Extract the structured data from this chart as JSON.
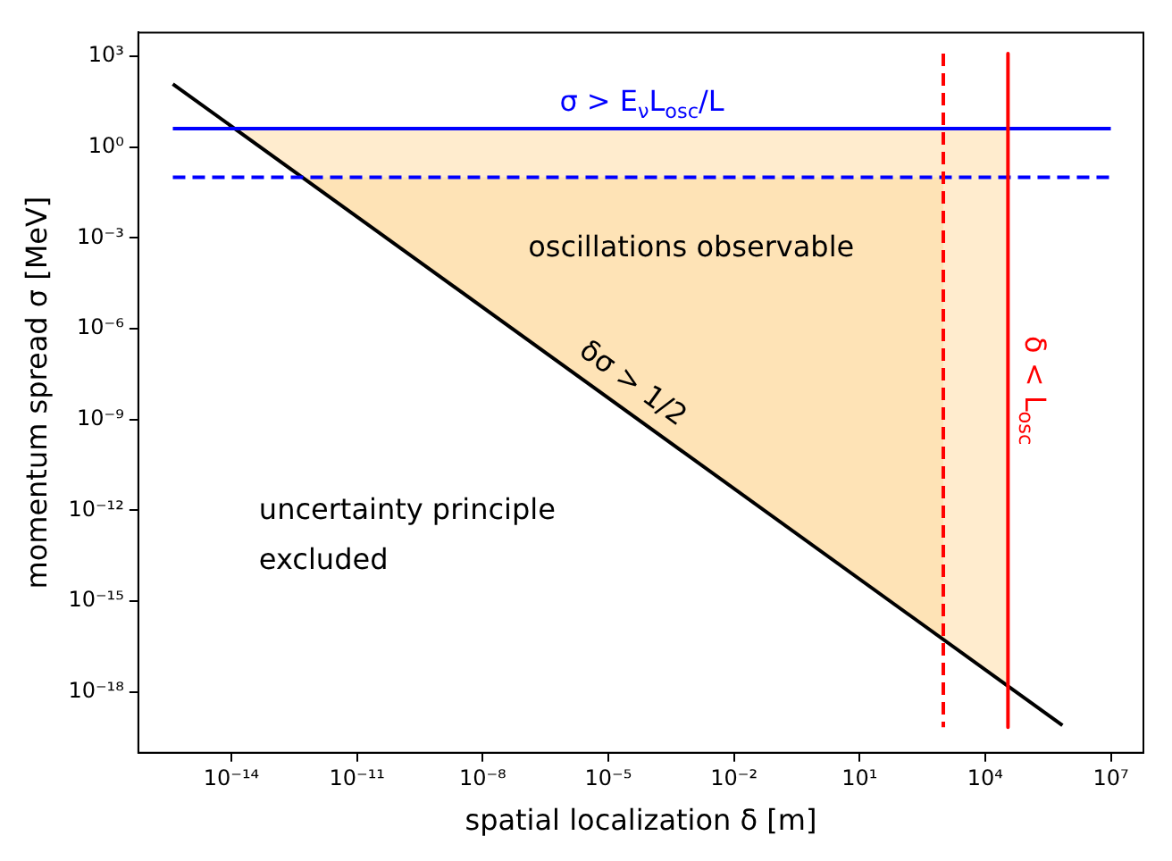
{
  "chart_data": {
    "type": "line",
    "xlabel": "spatial localization δ [m]",
    "ylabel": "momentum spread σ [MeV]",
    "log": "xy",
    "grid": false,
    "legend": false,
    "xlim": [
      6e-17,
      60000000.0
    ],
    "ylim": [
      1e-20,
      6000.0
    ],
    "xticks": [
      {
        "value": 1e-14,
        "label": "10⁻¹⁴"
      },
      {
        "value": 1e-11,
        "label": "10⁻¹¹"
      },
      {
        "value": 1e-08,
        "label": "10⁻⁸"
      },
      {
        "value": 1e-05,
        "label": "10⁻⁵"
      },
      {
        "value": 0.01,
        "label": "10⁻²"
      },
      {
        "value": 10,
        "label": "10¹"
      },
      {
        "value": 10000,
        "label": "10⁴"
      },
      {
        "value": 10000000.0,
        "label": "10⁷"
      }
    ],
    "yticks": [
      {
        "value": 1000,
        "label": "10³"
      },
      {
        "value": 1,
        "label": "10⁰"
      },
      {
        "value": 0.001,
        "label": "10⁻³"
      },
      {
        "value": 1e-06,
        "label": "10⁻⁶"
      },
      {
        "value": 1e-09,
        "label": "10⁻⁹"
      },
      {
        "value": 1e-12,
        "label": "10⁻¹²"
      },
      {
        "value": 1e-15,
        "label": "10⁻¹⁵"
      },
      {
        "value": 1e-18,
        "label": "10⁻¹⁸"
      }
    ],
    "series": [
      {
        "type": "area",
        "color": "#ffecce",
        "x": [
          1.3e-14,
          35000,
          35000
        ],
        "values": [
          4,
          4,
          1.4e-18
        ]
      },
      {
        "type": "area",
        "color": "#fee3b6",
        "x": [
          4.9e-13,
          1000,
          1000
        ],
        "values": [
          0.1,
          0.1,
          4.9e-17
        ]
      },
      {
        "type": "line",
        "name": "δσ > 1/2",
        "color": "#000000",
        "line_style": "solid",
        "x": [
          4e-16,
          700000.0
        ],
        "values": [
          120,
          8e-20
        ]
      },
      {
        "type": "line",
        "name": "σ > E$_{ν}$L$_{osc}$/L",
        "color": "#0000ff",
        "line_style": "solid",
        "x": [
          4e-16,
          10000000.0
        ],
        "values": [
          4,
          4
        ]
      },
      {
        "type": "line",
        "color": "#0000ff",
        "line_style": "dashed",
        "x": [
          4e-16,
          10000000.0
        ],
        "values": [
          0.1,
          0.1
        ]
      },
      {
        "type": "line",
        "color": "#ff0000",
        "line_style": "dashed",
        "x": [
          1000,
          1000
        ],
        "values": [
          1200,
          7e-20
        ]
      },
      {
        "type": "line",
        "name": "δ < L$_{osc}$",
        "color": "#ff0000",
        "line_style": "solid",
        "x": [
          35000,
          35000
        ],
        "values": [
          1200,
          7e-20
        ]
      }
    ],
    "annotations": [
      "oscillations observable",
      "uncertainty principle\nexcluded"
    ]
  }
}
